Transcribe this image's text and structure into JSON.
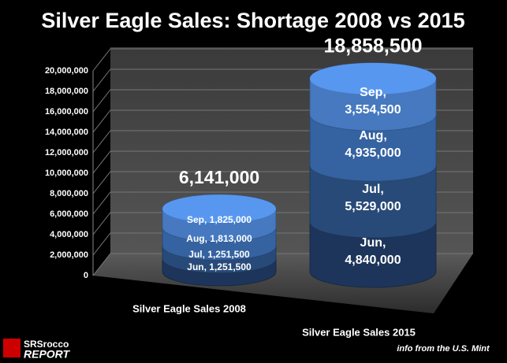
{
  "chart_data": {
    "type": "stacked-cylinder",
    "title": "Silver Eagle Sales:  Shortage 2008 vs 2015",
    "categories": [
      "Silver Eagle Sales 2008",
      "Silver Eagle Sales 2015"
    ],
    "series": [
      {
        "name": "Jun",
        "color": "#1d355a",
        "values": [
          1251500,
          4840000
        ],
        "value_labels": [
          "Jun, 1,251,500",
          "Jun, 4,840,000"
        ]
      },
      {
        "name": "Jul",
        "color": "#284a78",
        "values": [
          1251500,
          5529000
        ],
        "value_labels": [
          "Jul, 1,251,500",
          "Jul, 5,529,000"
        ]
      },
      {
        "name": "Aug",
        "color": "#3562a0",
        "values": [
          1813000,
          4935000
        ],
        "value_labels": [
          "Aug, 1,813,000",
          "Aug, 4,935,000"
        ]
      },
      {
        "name": "Sep",
        "color": "#4679bf",
        "values": [
          1825000,
          3554500
        ],
        "value_labels": [
          "Sep, 1,825,000",
          "Sep, 3,554,500"
        ]
      }
    ],
    "totals": [
      6141000,
      18858500
    ],
    "total_labels": [
      "6,141,000",
      "18,858,500"
    ],
    "ylim": [
      0,
      20000000
    ],
    "yticks": [
      0,
      {
        "value": 2000000,
        "label": "2,000,000"
      },
      {
        "value": 4000000,
        "label": "4,000,000"
      },
      {
        "value": 6000000,
        "label": "6,000,000"
      },
      {
        "value": 8000000,
        "label": "8,000,000"
      },
      {
        "value": 10000000,
        "label": "10,000,000"
      },
      {
        "value": 12000000,
        "label": "12,000,000"
      },
      {
        "value": 14000000,
        "label": "14,000,000"
      },
      {
        "value": 16000000,
        "label": "16,000,000"
      },
      {
        "value": 18000000,
        "label": "18,000,000"
      },
      {
        "value": 20000000,
        "label": "20,000,000"
      }
    ],
    "grid": true,
    "source": "info from the U.S. Mint",
    "logo": [
      "SRSrocco",
      "REPORT"
    ]
  }
}
